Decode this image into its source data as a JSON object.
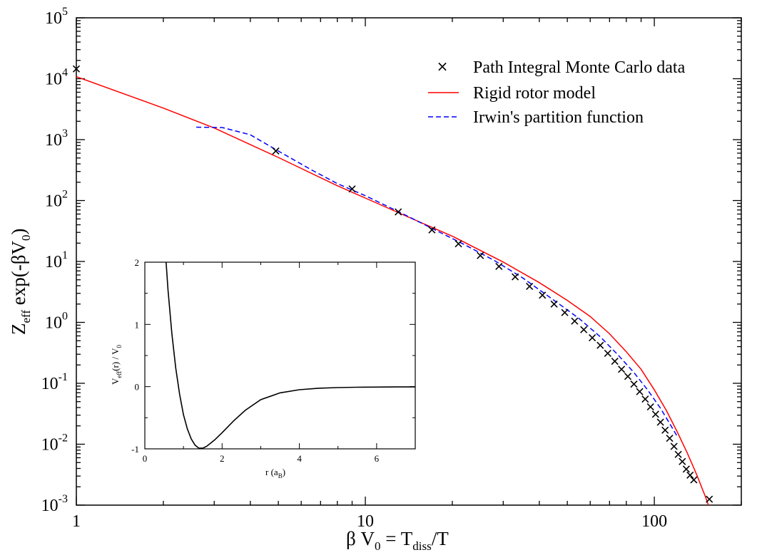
{
  "chart_data": [
    {
      "type": "line",
      "x_scale": "log",
      "y_scale": "log",
      "xlim": [
        1,
        200
      ],
      "ylim": [
        0.001,
        100000
      ],
      "x_ticks": [
        {
          "value": 1,
          "label": "1"
        },
        {
          "value": 10,
          "label": "10"
        },
        {
          "value": 100,
          "label": "100"
        }
      ],
      "y_ticks": [
        {
          "value": 0.001,
          "base": "10",
          "exp": "-3"
        },
        {
          "value": 0.01,
          "base": "10",
          "exp": "-2"
        },
        {
          "value": 0.1,
          "base": "10",
          "exp": "-1"
        },
        {
          "value": 1,
          "base": "10",
          "exp": "0"
        },
        {
          "value": 10,
          "base": "10",
          "exp": "1"
        },
        {
          "value": 100,
          "base": "10",
          "exp": "2"
        },
        {
          "value": 1000,
          "base": "10",
          "exp": "3"
        },
        {
          "value": 10000,
          "base": "10",
          "exp": "4"
        },
        {
          "value": 100000,
          "base": "10",
          "exp": "5"
        }
      ],
      "xlabel": {
        "main": "β V",
        "sub": "0",
        "rest": " = T",
        "sub2": "diss",
        "rest2": "/T"
      },
      "ylabel": {
        "main": "Z",
        "sub": "eff",
        "rest": " exp(-βV",
        "sub2": "0",
        "rest2": ")"
      },
      "legend_position": "top-right",
      "series": [
        {
          "name": "Path Integral Monte Carlo data",
          "style": "markers",
          "marker": "x",
          "color": "#000000",
          "x": [
            1.0,
            4.9,
            9.0,
            13.0,
            17.0,
            21.0,
            25.0,
            29.0,
            33.0,
            37.0,
            41.0,
            45.0,
            49.0,
            53.0,
            57.0,
            61.0,
            65.0,
            69.0,
            73.0,
            77.0,
            81.0,
            85.0,
            89.0,
            93.0,
            97.0,
            101.0,
            105.0,
            109.0,
            113.0,
            117.0,
            121.0,
            125.0,
            129.0,
            133.0,
            137.0,
            155.0
          ],
          "y": [
            14500,
            650,
            155,
            65,
            33,
            19.5,
            12.5,
            8.3,
            5.6,
            3.9,
            2.8,
            2.0,
            1.45,
            1.05,
            0.76,
            0.56,
            0.42,
            0.31,
            0.23,
            0.17,
            0.13,
            0.097,
            0.073,
            0.055,
            0.041,
            0.031,
            0.023,
            0.017,
            0.0125,
            0.0092,
            0.0068,
            0.0052,
            0.0039,
            0.0031,
            0.0026,
            0.00125
          ]
        },
        {
          "name": "Rigid rotor model",
          "style": "solid",
          "color": "#ff0000",
          "x": [
            1.0,
            2.0,
            3.0,
            5.0,
            8.0,
            10.0,
            15.0,
            20.0,
            30.0,
            40.0,
            50.0,
            60.0,
            70.0,
            80.0,
            90.0,
            100.0,
            110.0,
            120.0,
            130.0,
            140.0,
            150.0,
            160.0
          ],
          "y": [
            10800,
            3300,
            1550,
            510,
            175,
            110,
            47,
            26,
            9.8,
            4.5,
            2.3,
            1.25,
            0.65,
            0.33,
            0.17,
            0.078,
            0.036,
            0.016,
            0.0072,
            0.0032,
            0.0014,
            0.0006
          ]
        },
        {
          "name": "Irwin's partition function",
          "style": "dashed",
          "color": "#0000ff",
          "x": [
            2.6,
            3.2,
            4.0,
            5.0,
            6.5,
            8.0,
            10.0,
            13.0,
            17.0,
            22.0,
            28.0,
            35.0,
            45.0,
            55.0,
            65.0,
            75.0,
            85.0,
            95.0,
            105.0,
            115.0,
            120.0
          ],
          "y": [
            1600,
            1580,
            1200,
            650,
            320,
            190,
            120,
            66,
            35,
            19,
            10.3,
            5.4,
            2.3,
            1.15,
            0.58,
            0.29,
            0.15,
            0.077,
            0.039,
            0.019,
            0.0135
          ]
        }
      ]
    },
    {
      "type": "line",
      "role": "inset",
      "xlim": [
        0,
        7
      ],
      "ylim": [
        -1,
        2
      ],
      "x_ticks": [
        {
          "value": 0,
          "label": "0"
        },
        {
          "value": 2,
          "label": "2"
        },
        {
          "value": 4,
          "label": "4"
        },
        {
          "value": 6,
          "label": "6"
        }
      ],
      "y_ticks": [
        {
          "value": -1,
          "label": "-1"
        },
        {
          "value": 0,
          "label": "0"
        },
        {
          "value": 1,
          "label": "1"
        },
        {
          "value": 2,
          "label": "2"
        }
      ],
      "xlabel": {
        "main": "r  (a",
        "sub": "B",
        "rest": ")"
      },
      "ylabel": {
        "main": "V",
        "sub": "eff",
        "rest": "(r) / V",
        "sub2": "0",
        "rest2": ""
      },
      "series": [
        {
          "style": "solid",
          "color": "#000000",
          "x": [
            0.55,
            0.6,
            0.7,
            0.8,
            0.9,
            1.0,
            1.1,
            1.2,
            1.3,
            1.4,
            1.5,
            1.6,
            1.8,
            2.0,
            2.3,
            2.6,
            3.0,
            3.5,
            4.0,
            4.5,
            5.0,
            5.5,
            6.0,
            6.5,
            7.0
          ],
          "y": [
            2.0,
            1.55,
            0.85,
            0.3,
            -0.12,
            -0.45,
            -0.68,
            -0.84,
            -0.94,
            -0.99,
            -0.99,
            -0.96,
            -0.86,
            -0.74,
            -0.55,
            -0.38,
            -0.21,
            -0.1,
            -0.05,
            -0.025,
            -0.015,
            -0.01,
            -0.007,
            -0.005,
            -0.005
          ]
        }
      ]
    }
  ]
}
